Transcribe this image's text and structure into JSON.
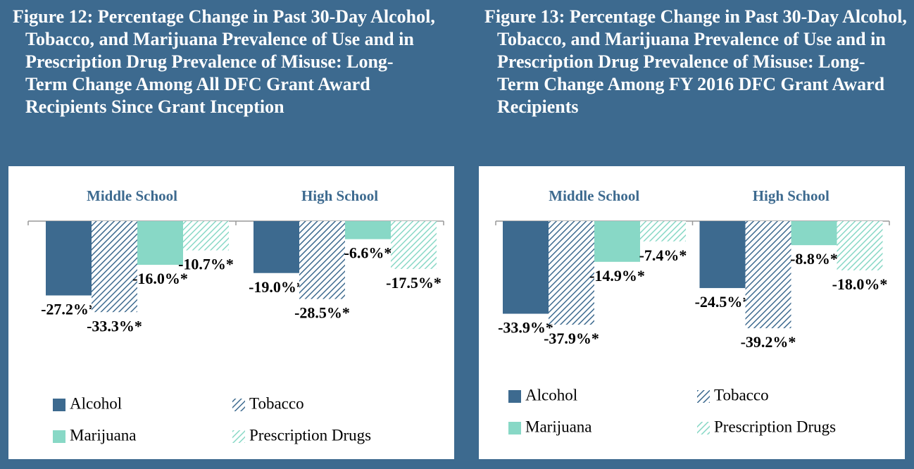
{
  "chart_data": [
    {
      "type": "bar",
      "title": "Figure 12: Percentage Change in Past 30-Day Alcohol, Tobacco, and Marijuana Prevalence of Use and in Prescription Drug Prevalence of Misuse: Long-Term Change Among All DFC Grant Award Recipients Since Grant Inception",
      "categories": [
        "Middle School",
        "High School"
      ],
      "series": [
        {
          "name": "Alcohol",
          "color": "#3d6a8f",
          "hatch": false,
          "values": [
            -27.2,
            -19.0
          ],
          "value_labels": [
            "-27.2%*",
            "-19.0%*"
          ]
        },
        {
          "name": "Tobacco",
          "color": "#3d6a8f",
          "hatch": true,
          "values": [
            -33.3,
            -28.5
          ],
          "value_labels": [
            "-33.3%*",
            "-28.5%*"
          ]
        },
        {
          "name": "Marijuana",
          "color": "#88d8c6",
          "hatch": false,
          "values": [
            -16.0,
            -6.6
          ],
          "value_labels": [
            "-16.0%*",
            "-6.6%*"
          ]
        },
        {
          "name": "Prescription Drugs",
          "color": "#88d8c6",
          "hatch": true,
          "values": [
            -10.7,
            -17.5
          ],
          "value_labels": [
            "-10.7%*",
            "-17.5%*"
          ]
        }
      ]
    },
    {
      "type": "bar",
      "title": "Figure 13: Percentage Change in Past 30-Day Alcohol, Tobacco, and Marijuana Prevalence of Use and in Prescription Drug Prevalence of Misuse: Long-Term Change Among FY 2016 DFC Grant Award Recipients",
      "categories": [
        "Middle School",
        "High School"
      ],
      "series": [
        {
          "name": "Alcohol",
          "color": "#3d6a8f",
          "hatch": false,
          "values": [
            -33.9,
            -24.5
          ],
          "value_labels": [
            "-33.9%*",
            "-24.5%*"
          ]
        },
        {
          "name": "Tobacco",
          "color": "#3d6a8f",
          "hatch": true,
          "values": [
            -37.9,
            -39.2
          ],
          "value_labels": [
            "-37.9%*",
            "-39.2%*"
          ]
        },
        {
          "name": "Marijuana",
          "color": "#88d8c6",
          "hatch": false,
          "values": [
            -14.9,
            -8.8
          ],
          "value_labels": [
            "-14.9%*",
            "-8.8%*"
          ]
        },
        {
          "name": "Prescription Drugs",
          "color": "#88d8c6",
          "hatch": true,
          "values": [
            -7.4,
            -18.0
          ],
          "value_labels": [
            "-7.4%*",
            "-18.0%*"
          ]
        }
      ]
    }
  ]
}
